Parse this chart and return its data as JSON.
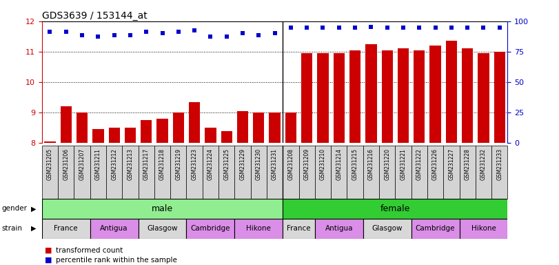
{
  "title": "GDS3639 / 153144_at",
  "samples": [
    "GSM231205",
    "GSM231206",
    "GSM231207",
    "GSM231211",
    "GSM231212",
    "GSM231213",
    "GSM231217",
    "GSM231218",
    "GSM231219",
    "GSM231223",
    "GSM231224",
    "GSM231225",
    "GSM231229",
    "GSM231230",
    "GSM231231",
    "GSM231208",
    "GSM231209",
    "GSM231210",
    "GSM231214",
    "GSM231215",
    "GSM231216",
    "GSM231220",
    "GSM231221",
    "GSM231222",
    "GSM231226",
    "GSM231227",
    "GSM231228",
    "GSM231232",
    "GSM231233"
  ],
  "bar_values": [
    8.05,
    9.2,
    9.0,
    8.45,
    8.5,
    8.5,
    8.75,
    8.8,
    9.0,
    9.35,
    8.5,
    8.4,
    9.05,
    9.0,
    9.0,
    9.0,
    10.95,
    10.95,
    10.95,
    11.05,
    11.25,
    11.05,
    11.1,
    11.05,
    11.2,
    11.35,
    11.1,
    10.95,
    11.0
  ],
  "percentile_values": [
    11.65,
    11.65,
    11.55,
    11.5,
    11.55,
    11.55,
    11.65,
    11.6,
    11.65,
    11.7,
    11.5,
    11.5,
    11.6,
    11.55,
    11.6,
    11.78,
    11.78,
    11.78,
    11.78,
    11.78,
    11.82,
    11.78,
    11.78,
    11.78,
    11.78,
    11.78,
    11.78,
    11.78,
    11.78
  ],
  "ylim": [
    8,
    12
  ],
  "yticks_left": [
    8,
    9,
    10,
    11,
    12
  ],
  "yticks_right": [
    0,
    25,
    50,
    75,
    100
  ],
  "bar_color": "#cc0000",
  "dot_color": "#0000cc",
  "title_fontsize": 10,
  "n_male": 15,
  "n_total": 29,
  "gender_color_male": "#90ee90",
  "gender_color_female": "#32cd32",
  "strain_groups": [
    {
      "label": "France",
      "start": 0,
      "end": 3,
      "color": "#d8d8d8"
    },
    {
      "label": "Antigua",
      "start": 3,
      "end": 6,
      "color": "#da8ee7"
    },
    {
      "label": "Glasgow",
      "start": 6,
      "end": 9,
      "color": "#d8d8d8"
    },
    {
      "label": "Cambridge",
      "start": 9,
      "end": 12,
      "color": "#da8ee7"
    },
    {
      "label": "Hikone",
      "start": 12,
      "end": 15,
      "color": "#da8ee7"
    },
    {
      "label": "France",
      "start": 15,
      "end": 17,
      "color": "#d8d8d8"
    },
    {
      "label": "Antigua",
      "start": 17,
      "end": 20,
      "color": "#da8ee7"
    },
    {
      "label": "Glasgow",
      "start": 20,
      "end": 23,
      "color": "#d8d8d8"
    },
    {
      "label": "Cambridge",
      "start": 23,
      "end": 26,
      "color": "#da8ee7"
    },
    {
      "label": "Hikone",
      "start": 26,
      "end": 29,
      "color": "#da8ee7"
    }
  ],
  "legend_items": [
    {
      "label": "transformed count",
      "color": "#cc0000"
    },
    {
      "label": "percentile rank within the sample",
      "color": "#0000cc"
    }
  ]
}
